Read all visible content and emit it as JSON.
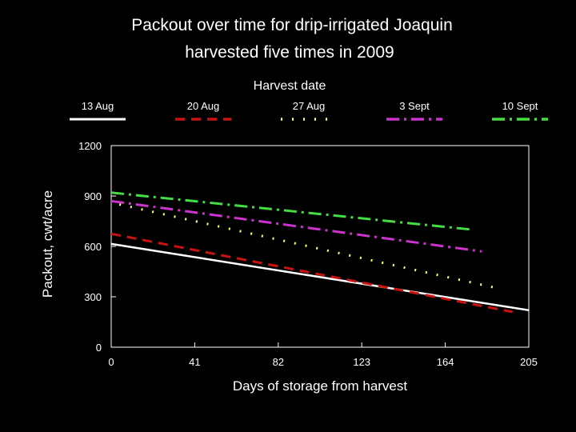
{
  "chart_data": {
    "type": "line",
    "title_lines": [
      "Packout over time for drip-irrigated Joaquin",
      "harvested five times in 2009"
    ],
    "legend_title": "Harvest date",
    "legend_placement": "top",
    "xlabel": "Days of storage from harvest",
    "ylabel": "Packout, cwt/acre",
    "xlim": [
      0,
      205
    ],
    "ylim": [
      0,
      1200
    ],
    "xticks": [
      0,
      41,
      82,
      123,
      164,
      205
    ],
    "yticks": [
      0,
      300,
      600,
      900,
      1200
    ],
    "xtick_labels": [
      "0",
      "41",
      "82",
      "123",
      "164",
      "205"
    ],
    "ytick_labels": [
      "0",
      "300",
      "600",
      "900",
      "1200"
    ],
    "grid": false,
    "series": [
      {
        "name": "13 Aug",
        "color": "#ffffff",
        "style": "solid",
        "x": [
          0,
          205
        ],
        "y": [
          615,
          220
        ]
      },
      {
        "name": "20 Aug",
        "color": "#cc1111",
        "style": "dashed",
        "x": [
          0,
          197
        ],
        "y": [
          675,
          210
        ]
      },
      {
        "name": "27 Aug",
        "color": "#ffff66",
        "style": "dotted",
        "x": [
          4,
          190
        ],
        "y": [
          850,
          350
        ]
      },
      {
        "name": "3 Sept",
        "color": "#cc33cc",
        "style": "dashdot",
        "x": [
          0,
          182
        ],
        "y": [
          870,
          570
        ]
      },
      {
        "name": "10 Sept",
        "color": "#44dd44",
        "style": "dashdot",
        "x": [
          0,
          177
        ],
        "y": [
          920,
          700
        ]
      }
    ]
  }
}
